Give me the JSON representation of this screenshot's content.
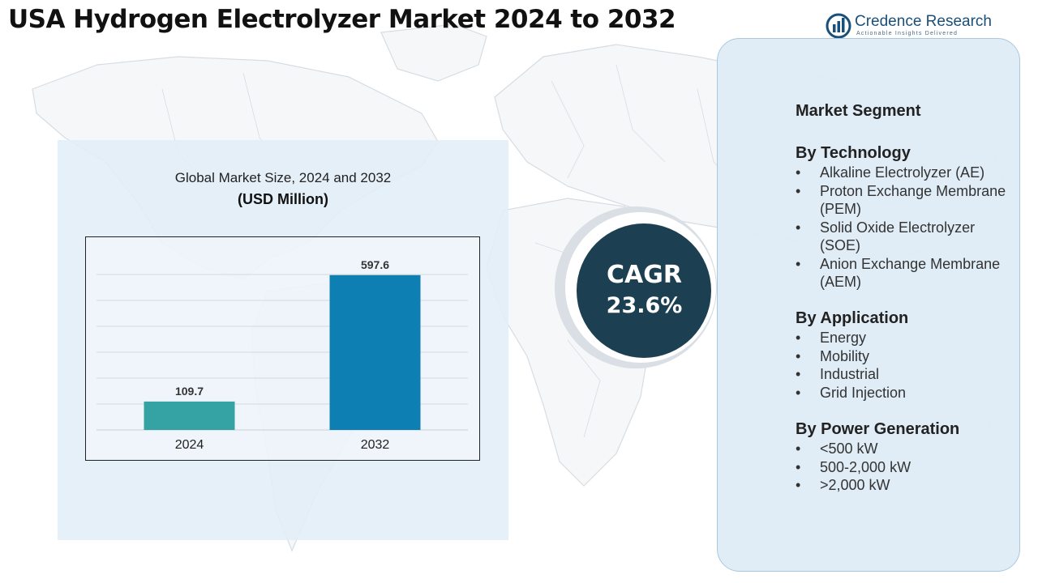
{
  "header": {
    "title": "USA Hydrogen Electrolyzer Market 2024 to 2032"
  },
  "logo": {
    "name": "Credence Research",
    "tagline": "Actionable Insights Delivered"
  },
  "chart_data": {
    "type": "bar",
    "title": "Global Market Size, 2024 and 2032",
    "subtitle": "(USD Million)",
    "categories": [
      "2024",
      "2032"
    ],
    "values": [
      109.7,
      597.6
    ],
    "data_labels": [
      "109.7",
      "597.6"
    ],
    "colors": [
      "#35a3a3",
      "#0e7fb3"
    ],
    "xlabel": "",
    "ylabel": "",
    "ylim": [
      0,
      700
    ],
    "grid": true,
    "legend": "none"
  },
  "cagr": {
    "label": "CAGR",
    "value": "23.6%"
  },
  "segments": {
    "heading": "Market Segment",
    "groups": [
      {
        "title": "By Technology",
        "items": [
          "Alkaline Electrolyzer (AE)",
          "Proton Exchange Membrane (PEM)",
          "Solid Oxide Electrolyzer (SOE)",
          "Anion Exchange Membrane (AEM)"
        ]
      },
      {
        "title": "By Application",
        "items": [
          "Energy",
          "Mobility",
          "Industrial",
          "Grid Injection"
        ]
      },
      {
        "title": "By Power Generation",
        "items": [
          "<500 kW",
          "500-2,000 kW",
          ">2,000 kW"
        ]
      }
    ]
  },
  "colors": {
    "cagr_circle": "#1c3f52",
    "panel_bg": "#e2eef7",
    "panel_border": "#a9c8dc"
  }
}
